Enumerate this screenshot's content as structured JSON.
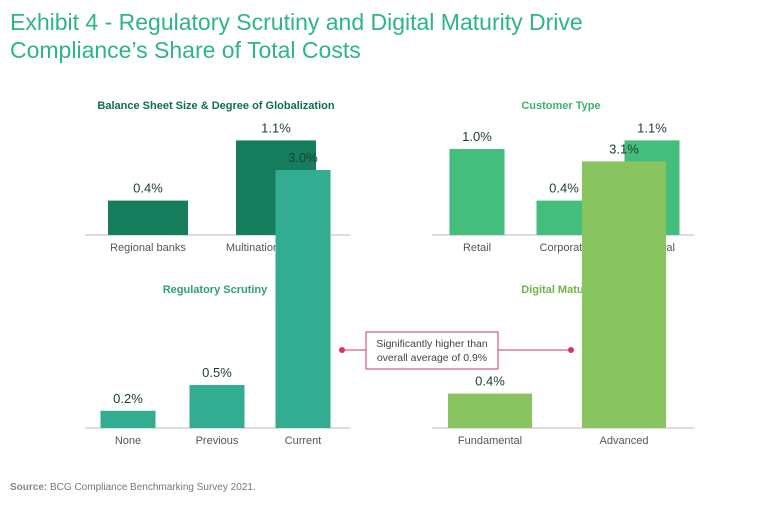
{
  "title": {
    "line1": "Exhibit 4 - Regulatory Scrutiny and Digital Maturity Drive",
    "line2": "Compliance’s Share of Total Costs"
  },
  "colors": {
    "title": "#2db48a",
    "panel1_bar": "#167d5c",
    "panel1_title": "#0f6e4f",
    "panel2_bar": "#45be7d",
    "panel2_title": "#3bb36f",
    "panel3_bar": "#33ad91",
    "panel3_title": "#2f9f77",
    "panel4_bar": "#88c45f",
    "panel4_title": "#6fb545",
    "annotation": "#d6336c"
  },
  "chart_data": [
    {
      "type": "bar",
      "title": "Balance Sheet Size & Degree of Globalization",
      "categories": [
        "Regional banks",
        "Multinational players"
      ],
      "values": [
        0.4,
        1.1
      ],
      "labels": [
        "0.4%",
        "1.1%"
      ],
      "ylim": [
        0,
        3.2
      ]
    },
    {
      "type": "bar",
      "title": "Customer Type",
      "categories": [
        "Retail",
        "Corporate",
        "Universal"
      ],
      "values": [
        1.0,
        0.4,
        1.1
      ],
      "labels": [
        "1.0%",
        "0.4%",
        "1.1%"
      ],
      "ylim": [
        0,
        3.2
      ]
    },
    {
      "type": "bar",
      "title": "Regulatory Scrutiny",
      "categories": [
        "None",
        "Previous",
        "Current"
      ],
      "values": [
        0.2,
        0.5,
        3.0
      ],
      "labels": [
        "0.2%",
        "0.5%",
        "3.0%"
      ],
      "ylim": [
        0,
        3.2
      ]
    },
    {
      "type": "bar",
      "title": "Digital Maturity",
      "categories": [
        "Fundamental",
        "Advanced"
      ],
      "values": [
        0.4,
        3.1
      ],
      "labels": [
        "0.4%",
        "3.1%"
      ],
      "ylim": [
        0,
        3.2
      ]
    }
  ],
  "annotation": {
    "line1": "Significantly higher than",
    "line2": "overall average of 0.9%"
  },
  "source": {
    "label": "Source:",
    "text": "BCG Compliance Benchmarking Survey 2021."
  }
}
